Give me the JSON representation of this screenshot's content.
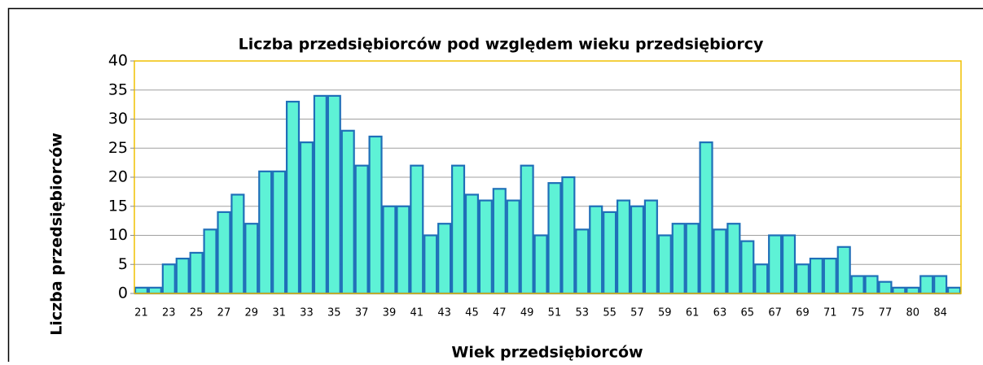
{
  "chart_data": {
    "type": "bar",
    "title": "Liczba przedsiębiorców pod względem wieku przedsiębiorcy",
    "x_label": "Wiek przedsiębiorców",
    "y_label": "Liczba przedsiębiorców",
    "categories": [
      "21",
      null,
      "23",
      null,
      "25",
      null,
      "27",
      null,
      "29",
      null,
      "31",
      null,
      "33",
      null,
      "35",
      null,
      "37",
      null,
      "39",
      null,
      "41",
      null,
      "43",
      null,
      "45",
      null,
      "47",
      null,
      "49",
      null,
      "51",
      null,
      "53",
      null,
      "55",
      null,
      "57",
      null,
      "59",
      null,
      "61",
      null,
      "63",
      null,
      "65",
      null,
      "67",
      null,
      "69",
      null,
      "71",
      null,
      "75",
      null,
      "77",
      null,
      "80",
      null,
      "84",
      null
    ],
    "values": [
      1,
      1,
      5,
      6,
      7,
      11,
      14,
      17,
      12,
      21,
      21,
      33,
      26,
      34,
      34,
      28,
      22,
      27,
      15,
      15,
      22,
      10,
      12,
      22,
      17,
      16,
      18,
      16,
      22,
      10,
      19,
      20,
      11,
      15,
      14,
      16,
      15,
      16,
      10,
      12,
      12,
      26,
      11,
      12,
      9,
      5,
      10,
      10,
      5,
      6,
      6,
      8,
      3,
      3,
      2,
      1,
      1,
      3,
      3,
      1
    ],
    "color": "#5ef2d6",
    "edge_color": "#1f6fb8",
    "ylim": [
      0,
      40
    ],
    "yticks": [
      0,
      5,
      10,
      15,
      20,
      25,
      30,
      35,
      40
    ],
    "grid": true
  }
}
